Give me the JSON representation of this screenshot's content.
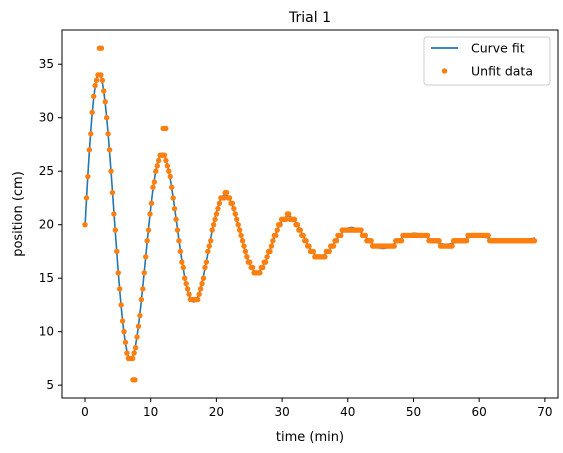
{
  "chart_data": {
    "type": "line",
    "title": "Trial 1",
    "xlabel": "time (min)",
    "ylabel": "position (cm)",
    "xlim": [
      -3.5,
      72.0
    ],
    "ylim": [
      3.8,
      38.2
    ],
    "xticks": [
      0,
      10,
      20,
      30,
      40,
      50,
      60,
      70
    ],
    "yticks": [
      5,
      10,
      15,
      20,
      25,
      30,
      35
    ],
    "grid": false,
    "legend_position": "top-right",
    "colors": {
      "fit": "#1f77b4",
      "data": "#ff7f0e"
    },
    "series": [
      {
        "name": "Curve fit",
        "kind": "line",
        "model": {
          "type": "damped-cosine",
          "offset": 18.6,
          "amplitude": 18.0,
          "decay_rate": 0.068,
          "period": 9.6,
          "phase_time": 2.3
        },
        "x_range": [
          0.0,
          68.5
        ]
      },
      {
        "name": "Unfit data",
        "kind": "markers",
        "x_range": [
          0.0,
          68.5
        ],
        "sampling_interval": 0.22,
        "y_resolution": 0.5,
        "outlier_points": [
          {
            "x": 2.2,
            "y": 36.5
          },
          {
            "x": 2.5,
            "y": 36.5
          },
          {
            "x": 7.3,
            "y": 5.5
          },
          {
            "x": 7.6,
            "y": 5.5
          },
          {
            "x": 11.9,
            "y": 29.0
          },
          {
            "x": 12.3,
            "y": 29.0
          }
        ]
      }
    ]
  }
}
